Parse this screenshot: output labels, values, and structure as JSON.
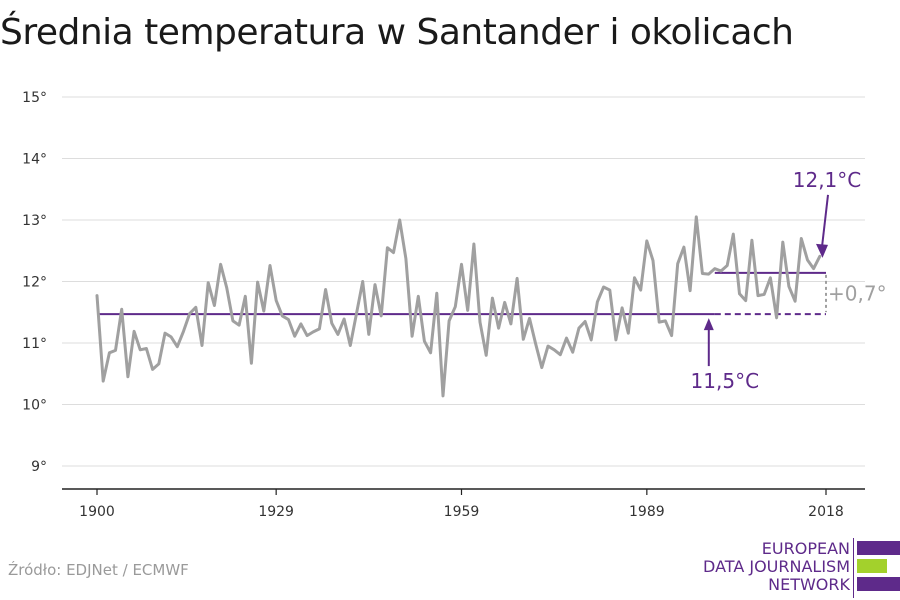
{
  "title": "Średnia temperatura w Santander i okolicach",
  "source": "Źródło: EDJNet / ECMWF",
  "logo": {
    "line1": "EUROPEAN",
    "line2": "DATA JOURNALISM",
    "line3": "NETWORK"
  },
  "colors": {
    "line": "#a0a0a0",
    "accent": "#5e2a8a",
    "grid": "#dddddd",
    "logo_green": "#a3d12c"
  },
  "chart_data": {
    "type": "line",
    "title": "Średnia temperatura w Santander i okolicach",
    "xlabel": "",
    "ylabel": "",
    "xlim": [
      1900,
      2018
    ],
    "ylim": [
      9,
      15
    ],
    "x_ticks": [
      1900,
      1929,
      1959,
      1989,
      2018
    ],
    "x_tick_labels": [
      "1900",
      "1929",
      "1959",
      "1989",
      "2018"
    ],
    "y_ticks": [
      9,
      10,
      11,
      12,
      13,
      14,
      15
    ],
    "y_tick_labels": [
      "9°",
      "10°",
      "11°",
      "12°",
      "13°",
      "14°",
      "15°"
    ],
    "grid": true,
    "series": [
      {
        "values": [
          11.77,
          10.38,
          10.84,
          10.88,
          11.55,
          10.45,
          11.19,
          10.89,
          10.91,
          10.57,
          10.66,
          11.16,
          11.1,
          10.94,
          11.19,
          11.48,
          11.58,
          10.96,
          11.98,
          11.61,
          12.28,
          11.9,
          11.36,
          11.29,
          11.76,
          10.67,
          11.99,
          11.52,
          12.26,
          11.69,
          11.44,
          11.38,
          11.11,
          11.31,
          11.12,
          11.18,
          11.23,
          11.87,
          11.32,
          11.14,
          11.39,
          10.96,
          11.48,
          12.0,
          11.14,
          11.95,
          11.44,
          12.55,
          12.47,
          13.0,
          12.37,
          11.11,
          11.76,
          11.03,
          10.84,
          11.81,
          10.14,
          11.36,
          11.59,
          12.28,
          11.53,
          12.61,
          11.34,
          10.8,
          11.73,
          11.24,
          11.66,
          11.31,
          12.05,
          11.06,
          11.4,
          10.99,
          10.6,
          10.95,
          10.89,
          10.81,
          11.08,
          10.85,
          11.24,
          11.35,
          11.05,
          11.67,
          11.91,
          11.86,
          11.05,
          11.57,
          11.16,
          12.06,
          11.86,
          12.66,
          12.34,
          11.34,
          11.36,
          11.12,
          12.29,
          12.56,
          11.85,
          13.05,
          12.13,
          12.12,
          12.21,
          12.17,
          12.26,
          12.77,
          11.8,
          11.69,
          12.67,
          11.77,
          11.79,
          12.06,
          11.41,
          12.64,
          11.92,
          11.68,
          12.7,
          12.35,
          12.21,
          12.41
        ]
      }
    ],
    "annotations": [
      {
        "type": "reference_line",
        "label": "11,5°C",
        "y": 11.47,
        "x_start": 1900,
        "x_end": 2018,
        "style": "solid_then_dashed",
        "dashed_from": 2000
      },
      {
        "type": "reference_line",
        "label": "12,1°C",
        "y": 12.14,
        "x_start": 2000,
        "x_end": 2018,
        "style": "solid"
      },
      {
        "type": "difference",
        "label": "+0,7°",
        "from": 11.47,
        "to": 12.14,
        "x": 2018
      }
    ]
  }
}
